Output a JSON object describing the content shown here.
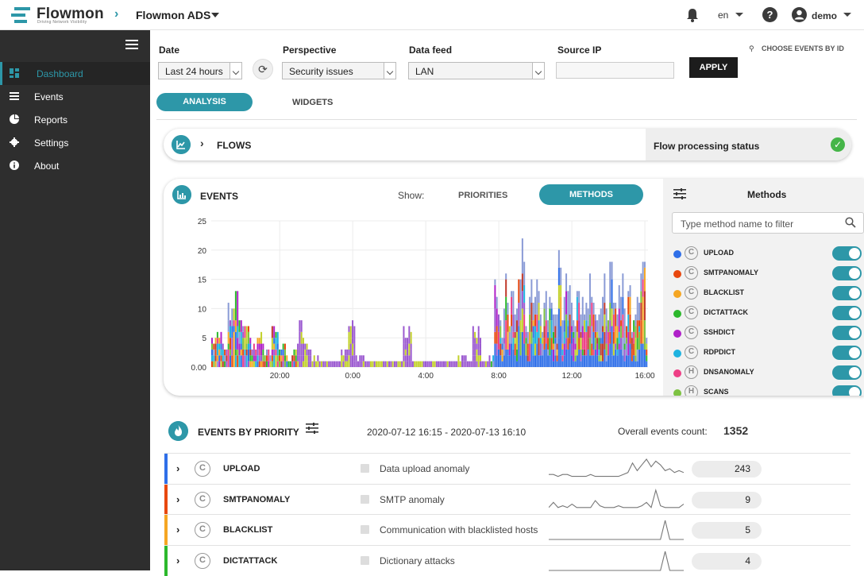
{
  "header": {
    "brand": "Flowmon",
    "brand_tagline": "Driving Network Visibility",
    "app_name": "Flowmon ADS",
    "language": "en",
    "help": "?",
    "user": "demo"
  },
  "sidebar": {
    "items": [
      {
        "label": "Dashboard",
        "icon": "dashboard-icon",
        "active": true
      },
      {
        "label": "Events",
        "icon": "list-icon",
        "active": false
      },
      {
        "label": "Reports",
        "icon": "pie-chart-icon",
        "active": false
      },
      {
        "label": "Settings",
        "icon": "gear-icon",
        "active": false
      },
      {
        "label": "About",
        "icon": "info-icon",
        "active": false
      }
    ]
  },
  "filters": {
    "date_label": "Date",
    "date_value": "Last 24 hours",
    "perspective_label": "Perspective",
    "perspective_value": "Security issues",
    "datafeed_label": "Data feed",
    "datafeed_value": "LAN",
    "sourceip_label": "Source IP",
    "sourceip_value": "",
    "apply_label": "APPLY",
    "choose_events_label": "CHOOSE EVENTS BY ID"
  },
  "tabs": {
    "analysis": "ANALYSIS",
    "widgets": "WIDGETS"
  },
  "flows": {
    "title": "FLOWS",
    "status_label": "Flow processing status",
    "status_ok": "✓"
  },
  "events": {
    "title": "EVENTS",
    "show_label": "Show:",
    "priorities_label": "PRIORITIES",
    "methods_label": "METHODS"
  },
  "methods_panel": {
    "title": "Methods",
    "search_placeholder": "Type method name to filter",
    "items": [
      {
        "name": "UPLOAD",
        "type": "C",
        "color": "#2f6fe8",
        "enabled": true
      },
      {
        "name": "SMTPANOMALY",
        "type": "C",
        "color": "#e8480f",
        "enabled": true
      },
      {
        "name": "BLACKLIST",
        "type": "C",
        "color": "#f5a623",
        "enabled": true
      },
      {
        "name": "DICTATTACK",
        "type": "C",
        "color": "#2cb82c",
        "enabled": true
      },
      {
        "name": "SSHDICT",
        "type": "C",
        "color": "#b021c9",
        "enabled": true
      },
      {
        "name": "RDPDICT",
        "type": "C",
        "color": "#1fb3e0",
        "enabled": true
      },
      {
        "name": "DNSANOMALY",
        "type": "H",
        "color": "#ee3f86",
        "enabled": true
      },
      {
        "name": "SCANS",
        "type": "H",
        "color": "#7dc242",
        "enabled": true
      }
    ]
  },
  "chart_data": {
    "type": "bar",
    "stacked": true,
    "x_ticks": [
      "20:00",
      "0:00",
      "4:00",
      "8:00",
      "12:00",
      "16:00"
    ],
    "y_ticks": [
      "0.00",
      "5",
      "10",
      "15",
      "20",
      "25"
    ],
    "ylim": [
      0,
      25
    ],
    "grid": true,
    "x_range_hours": [
      16.25,
      40.17
    ],
    "totals_sample": [
      [
        16.4,
        6
      ],
      [
        16.8,
        7
      ],
      [
        17.0,
        4
      ],
      [
        17.4,
        11
      ],
      [
        17.8,
        13
      ],
      [
        18.2,
        8
      ],
      [
        18.6,
        5
      ],
      [
        19.0,
        6
      ],
      [
        19.4,
        3
      ],
      [
        19.8,
        8
      ],
      [
        20.2,
        4
      ],
      [
        20.6,
        2
      ],
      [
        21.0,
        5
      ],
      [
        21.2,
        8
      ],
      [
        21.6,
        5
      ],
      [
        22.0,
        2
      ],
      [
        22.6,
        1
      ],
      [
        23.0,
        1
      ],
      [
        23.6,
        3
      ],
      [
        24.0,
        9
      ],
      [
        24.4,
        2
      ],
      [
        25.0,
        1
      ],
      [
        26.0,
        1
      ],
      [
        27.0,
        7
      ],
      [
        27.5,
        1
      ],
      [
        28.0,
        1
      ],
      [
        29.0,
        1
      ],
      [
        30.0,
        2
      ],
      [
        30.8,
        7
      ],
      [
        31.6,
        2
      ],
      [
        32.0,
        14
      ],
      [
        32.2,
        8
      ],
      [
        32.4,
        15
      ],
      [
        32.6,
        10
      ],
      [
        32.8,
        12
      ],
      [
        33.0,
        14
      ],
      [
        33.2,
        18
      ],
      [
        33.4,
        22
      ],
      [
        33.6,
        10
      ],
      [
        33.8,
        16
      ],
      [
        34.0,
        12
      ],
      [
        34.2,
        15
      ],
      [
        34.4,
        9
      ],
      [
        34.6,
        18
      ],
      [
        34.8,
        12
      ],
      [
        35.0,
        15
      ],
      [
        35.2,
        10
      ],
      [
        35.4,
        18
      ],
      [
        35.6,
        13
      ],
      [
        35.8,
        17
      ],
      [
        36.0,
        14
      ],
      [
        36.2,
        11
      ],
      [
        36.4,
        16
      ],
      [
        36.6,
        14
      ],
      [
        36.8,
        12
      ],
      [
        37.0,
        15
      ],
      [
        37.2,
        17
      ],
      [
        37.4,
        10
      ],
      [
        37.6,
        14
      ],
      [
        37.8,
        16
      ],
      [
        38.0,
        12
      ],
      [
        38.2,
        18
      ],
      [
        38.4,
        11
      ],
      [
        38.6,
        14
      ],
      [
        38.8,
        16
      ],
      [
        39.0,
        9
      ],
      [
        39.2,
        13
      ],
      [
        39.4,
        8
      ],
      [
        39.6,
        12
      ],
      [
        39.8,
        16
      ],
      [
        40.0,
        18
      ],
      [
        40.1,
        8
      ]
    ]
  },
  "events_by_priority": {
    "title": "EVENTS BY PRIORITY",
    "range": "2020-07-12 16:15 - 2020-07-13 16:10",
    "overall_label": "Overall events count:",
    "overall_count": "1352",
    "rows": [
      {
        "name": "UPLOAD",
        "type": "C",
        "description": "Data upload anomaly",
        "count": "243",
        "color": "#2f6fe8",
        "spark": [
          2,
          2,
          1,
          2,
          2,
          1,
          1,
          1,
          1,
          2,
          1,
          1,
          1,
          1,
          1,
          1,
          2,
          3,
          8,
          4,
          7,
          10,
          6,
          9,
          7,
          4,
          5,
          3,
          4,
          3
        ]
      },
      {
        "name": "SMTPANOMALY",
        "type": "C",
        "description": "SMTP anomaly",
        "count": "9",
        "color": "#e8480f",
        "spark": [
          1,
          4,
          1,
          2,
          1,
          3,
          1,
          1,
          1,
          1,
          5,
          2,
          1,
          1,
          1,
          2,
          1,
          1,
          1,
          1,
          2,
          4,
          1,
          11,
          2,
          1,
          1,
          1,
          1,
          3
        ]
      },
      {
        "name": "BLACKLIST",
        "type": "C",
        "description": "Communication with blacklisted hosts",
        "count": "5",
        "color": "#f5a623",
        "spark": [
          0,
          0,
          0,
          0,
          0,
          0,
          0,
          0,
          0,
          0,
          0,
          0,
          0,
          0,
          0,
          0,
          0,
          0,
          0,
          0,
          0,
          0,
          0,
          0,
          0,
          12,
          0,
          0,
          0,
          0
        ]
      },
      {
        "name": "DICTATTACK",
        "type": "C",
        "description": "Dictionary attacks",
        "count": "4",
        "color": "#2cb82c",
        "spark": [
          0,
          0,
          0,
          0,
          0,
          0,
          0,
          0,
          0,
          0,
          0,
          0,
          0,
          0,
          0,
          0,
          0,
          0,
          0,
          0,
          0,
          0,
          0,
          0,
          0,
          12,
          0,
          0,
          0,
          0
        ]
      }
    ]
  }
}
